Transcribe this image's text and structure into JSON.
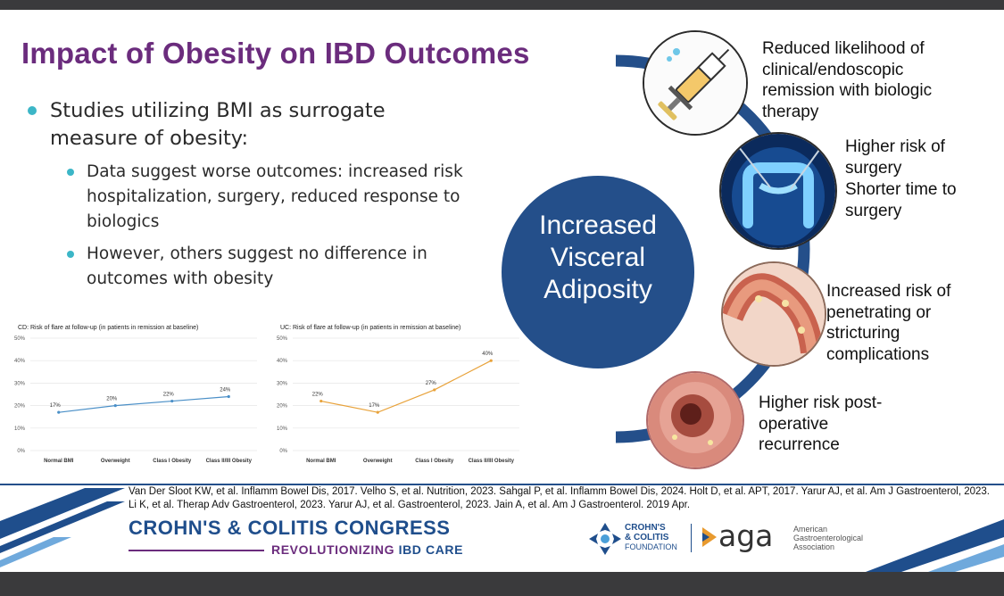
{
  "slide": {
    "title": "Impact of Obesity on IBD Outcomes",
    "bullets": {
      "main": "Studies utilizing BMI as surrogate measure of obesity:",
      "sub1": "Data suggest worse outcomes: increased risk hospitalization, surgery, reduced response to biologics",
      "sub2": "However, others suggest no difference in outcomes with obesity"
    },
    "center": {
      "line1": "Increased",
      "line2": "Visceral",
      "line3": "Adiposity"
    },
    "outcomes": {
      "o1": "Reduced likelihood of clinical/endoscopic remission with biologic therapy",
      "o2a": "Higher risk of surgery",
      "o2b": "Shorter time to surgery",
      "o3": "Increased risk of penetrating or stricturing complications",
      "o4": "Higher risk post-operative recurrence"
    },
    "references": "Van Der Sloot KW, et al. Inflamm Bowel Dis, 2017. Velho S, et al. Nutrition, 2023. Sahgal P, et al. Inflamm Bowel Dis, 2024. Holt D, et al. APT, 2017. Yarur AJ, et al. Am J Gastroenterol, 2023.  Li K, et al. Therap Adv Gastroenterol, 2023. Yarur AJ, et al. Gastroenterol, 2023. Jain A, et al. Am J Gastroenterol. 2019 Apr.",
    "footer": {
      "congress": "CROHN'S & COLITIS CONGRESS",
      "tagline_a": "REVOLUTIONIZING ",
      "tagline_b": "IBD CARE",
      "ccf_1": "CROHN'S",
      "ccf_2": "& COLITIS",
      "ccf_3": "FOUNDATION",
      "aga": "aga",
      "aga_1": "American",
      "aga_2": "Gastroenterological",
      "aga_3": "Association"
    },
    "colors": {
      "title": "#6b2c7d",
      "circle": "#244f8a",
      "bullet": "#3cb6c7",
      "cd_line": "#4a8fc7",
      "uc_line": "#e8a23a"
    }
  },
  "chart_data": [
    {
      "type": "line",
      "title": "CD:  Risk of flare at follow-up (in patients in remission at baseline)",
      "categories": [
        "Normal BMI",
        "Overweight",
        "Class I Obesity",
        "Class II/III Obesity"
      ],
      "values": [
        17,
        20,
        22,
        24
      ],
      "data_labels": [
        "17%",
        "20%",
        "22%",
        "24%"
      ],
      "yticks": [
        "0%",
        "10%",
        "20%",
        "30%",
        "40%",
        "50%"
      ],
      "ylim": [
        0,
        50
      ]
    },
    {
      "type": "line",
      "title": "UC:  Risk of flare at follow-up (in patients in remission at baseline)",
      "categories": [
        "Normal BMI",
        "Overweight",
        "Class I Obesity",
        "Class II/III Obesity"
      ],
      "values": [
        22,
        17,
        27,
        40
      ],
      "data_labels": [
        "22%",
        "17%",
        "27%",
        "40%"
      ],
      "yticks": [
        "0%",
        "10%",
        "20%",
        "30%",
        "40%",
        "50%"
      ],
      "ylim": [
        0,
        50
      ]
    }
  ]
}
